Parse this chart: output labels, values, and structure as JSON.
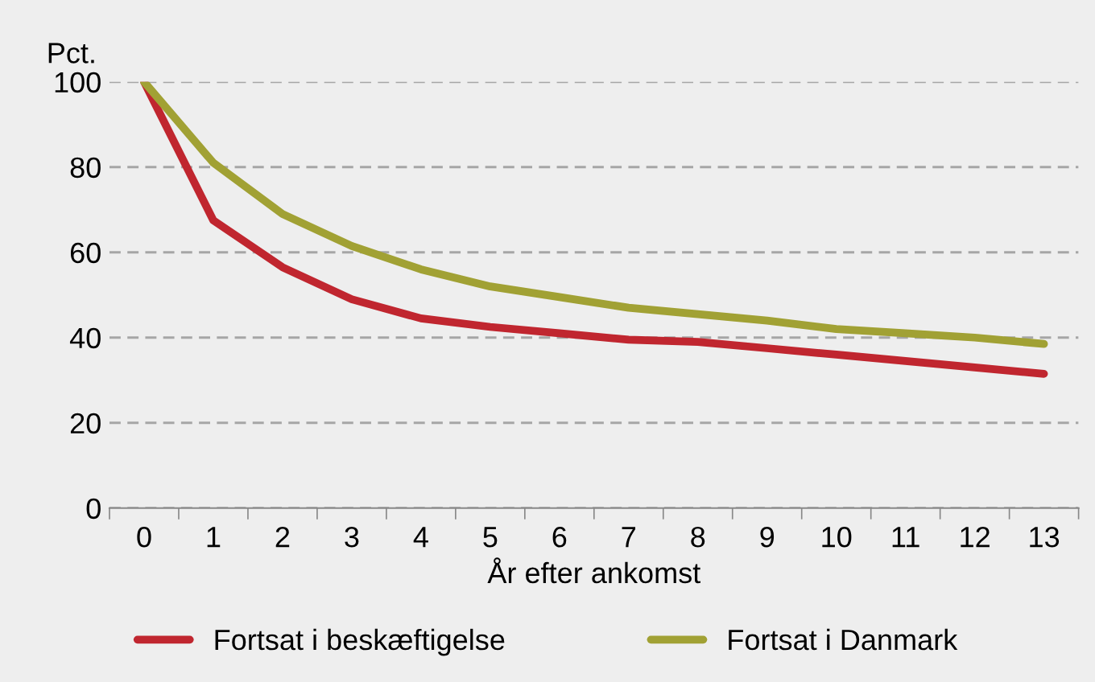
{
  "chart_data": {
    "type": "line",
    "ylabel": "Pct.",
    "xlabel": "År efter ankomst",
    "categories": [
      "0",
      "1",
      "2",
      "3",
      "4",
      "5",
      "6",
      "7",
      "8",
      "9",
      "10",
      "11",
      "12",
      "13"
    ],
    "series": [
      {
        "name": "Fortsat i beskæftigelse",
        "color": "#c0262f",
        "values": [
          100,
          67.5,
          56.5,
          49,
          44.5,
          42.5,
          41,
          39.5,
          39,
          37.5,
          36,
          34.5,
          33,
          31.5
        ]
      },
      {
        "name": "Fortsat i Danmark",
        "color": "#a1a134",
        "values": [
          100,
          81,
          69,
          61.5,
          56,
          52,
          49.5,
          47,
          45.5,
          44,
          42,
          41,
          40,
          38.5
        ]
      }
    ],
    "ylim": [
      0,
      100
    ],
    "yticks": [
      0,
      20,
      40,
      60,
      80,
      100
    ],
    "grid": "y",
    "legend": "bottom",
    "line_style": "solid",
    "marker": "none"
  }
}
